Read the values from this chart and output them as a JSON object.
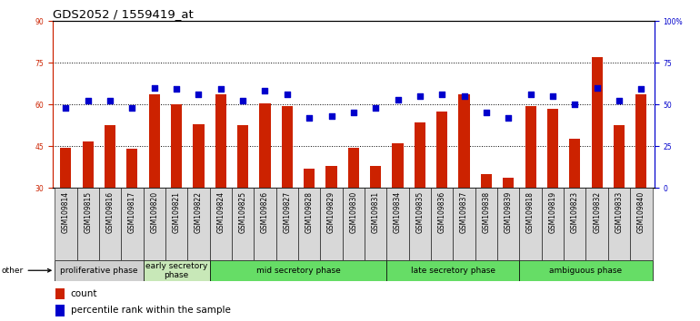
{
  "title": "GDS2052 / 1559419_at",
  "samples": [
    "GSM109814",
    "GSM109815",
    "GSM109816",
    "GSM109817",
    "GSM109820",
    "GSM109821",
    "GSM109822",
    "GSM109824",
    "GSM109825",
    "GSM109826",
    "GSM109827",
    "GSM109828",
    "GSM109829",
    "GSM109830",
    "GSM109831",
    "GSM109834",
    "GSM109835",
    "GSM109836",
    "GSM109837",
    "GSM109838",
    "GSM109839",
    "GSM109818",
    "GSM109819",
    "GSM109823",
    "GSM109832",
    "GSM109833",
    "GSM109840"
  ],
  "counts": [
    44.5,
    46.5,
    52.5,
    44.0,
    63.5,
    60.0,
    53.0,
    63.5,
    52.5,
    60.5,
    59.5,
    37.0,
    38.0,
    44.5,
    38.0,
    46.0,
    53.5,
    57.5,
    63.5,
    35.0,
    33.5,
    59.5,
    58.5,
    47.5,
    77.0,
    52.5,
    63.5
  ],
  "percentile_ranks": [
    48,
    52,
    52,
    48,
    60,
    59,
    56,
    59,
    52,
    58,
    56,
    42,
    43,
    45,
    48,
    53,
    55,
    56,
    55,
    45,
    42,
    56,
    55,
    50,
    60,
    52,
    59
  ],
  "bar_color": "#CC2200",
  "dot_color": "#0000CC",
  "ylim_left": [
    30,
    90
  ],
  "ylim_right": [
    0,
    100
  ],
  "yticks_left": [
    30,
    45,
    60,
    75,
    90
  ],
  "yticks_right": [
    0,
    25,
    50,
    75,
    100
  ],
  "yticklabels_right": [
    "0",
    "25",
    "50",
    "75",
    "100%"
  ],
  "grid_levels": [
    45,
    60,
    75
  ],
  "phases": [
    {
      "label": "proliferative phase",
      "start": 0,
      "end": 4,
      "color": "#d0d0d0"
    },
    {
      "label": "early secretory\nphase",
      "start": 4,
      "end": 7,
      "color": "#c8e8b8"
    },
    {
      "label": "mid secretory phase",
      "start": 7,
      "end": 15,
      "color": "#66dd66"
    },
    {
      "label": "late secretory phase",
      "start": 15,
      "end": 21,
      "color": "#66dd66"
    },
    {
      "label": "ambiguous phase",
      "start": 21,
      "end": 27,
      "color": "#66dd66"
    }
  ],
  "other_label": "other",
  "legend_items": [
    {
      "label": "count",
      "color": "#CC2200"
    },
    {
      "label": "percentile rank within the sample",
      "color": "#0000CC"
    }
  ],
  "bar_width": 0.5,
  "dot_size": 22,
  "title_fontsize": 9.5,
  "tick_fontsize": 5.5,
  "phase_fontsize": 6.5,
  "legend_fontsize": 7.5,
  "left_ytick_color": "#CC2200",
  "right_ytick_color": "#0000CC",
  "baseline": 30
}
